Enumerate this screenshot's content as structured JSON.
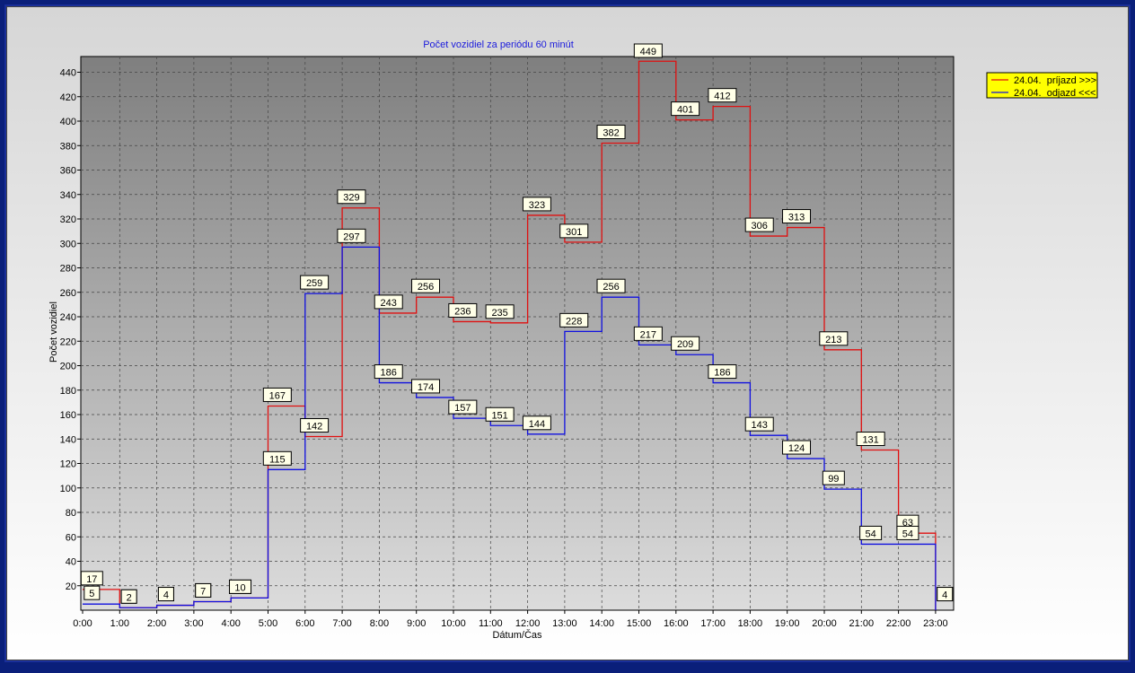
{
  "chart_data": {
    "type": "line",
    "step": true,
    "title": "Počet vozidiel za periódu 60 minút",
    "xlabel": "Dátum/Čas",
    "ylabel": "Počet vozidiel",
    "categories": [
      "0:00",
      "1:00",
      "2:00",
      "3:00",
      "4:00",
      "5:00",
      "6:00",
      "7:00",
      "8:00",
      "9:00",
      "10:00",
      "11:00",
      "12:00",
      "13:00",
      "14:00",
      "15:00",
      "16:00",
      "17:00",
      "18:00",
      "19:00",
      "20:00",
      "21:00",
      "22:00",
      "23:00"
    ],
    "ylim": [
      0,
      450
    ],
    "yticks": [
      20,
      40,
      60,
      80,
      100,
      120,
      140,
      160,
      180,
      200,
      220,
      240,
      260,
      280,
      300,
      320,
      340,
      360,
      380,
      400,
      420,
      440
    ],
    "grid": true,
    "legend_position": "top-right",
    "series": [
      {
        "name": "24.04.  príjazd >>>",
        "color": "#e01010",
        "values": [
          17,
          2,
          4,
          7,
          10,
          167,
          142,
          329,
          243,
          256,
          236,
          235,
          323,
          301,
          382,
          449,
          401,
          412,
          306,
          313,
          213,
          131,
          63,
          4
        ]
      },
      {
        "name": "24.04.  odjazd <<<",
        "color": "#1010e0",
        "values": [
          5,
          2,
          4,
          7,
          10,
          115,
          259,
          297,
          186,
          174,
          157,
          151,
          144,
          228,
          256,
          217,
          209,
          186,
          143,
          124,
          99,
          54,
          54,
          4
        ]
      }
    ]
  },
  "colors": {
    "plot_top": "#7f7f7f",
    "plot_bottom": "#dcdcdc",
    "legend_bg": "#ffff00",
    "label_bg": "#ffffe8"
  }
}
